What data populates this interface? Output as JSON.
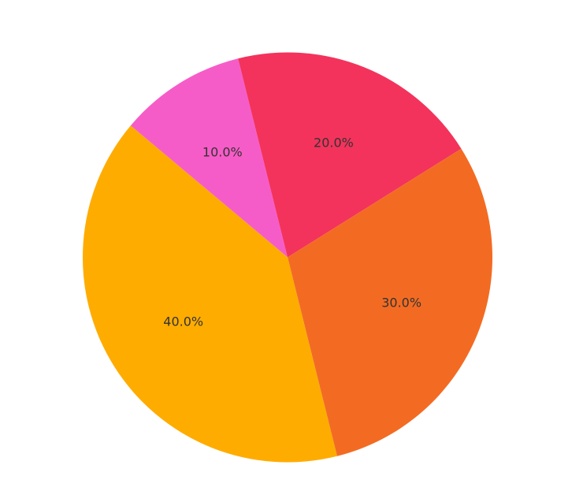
{
  "chart_data": {
    "type": "pie",
    "values": [
      10,
      20,
      30,
      40
    ],
    "value_labels": [
      "10.0%",
      "20.0%",
      "30.0%",
      "40.0%"
    ],
    "colors": [
      "#f65cc8",
      "#f3335c",
      "#f36b22",
      "#ffac00"
    ]
  }
}
